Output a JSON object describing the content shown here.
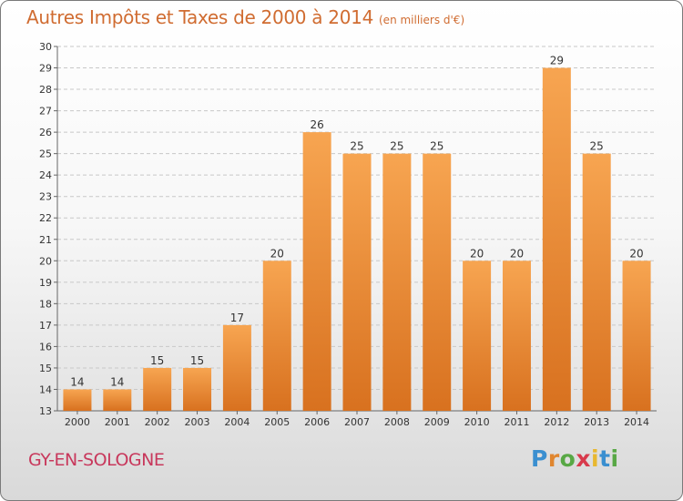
{
  "title": "Autres Impôts et Taxes de 2000 à 2014",
  "unit": "(en milliers d'€)",
  "commune": "GY-EN-SOLOGNE",
  "logo": {
    "text": "Proxiti",
    "letters": [
      {
        "ch": "P",
        "color": "#3a8fd0"
      },
      {
        "ch": "r",
        "color": "#e0862f"
      },
      {
        "ch": "o",
        "color": "#58a845"
      },
      {
        "ch": "x",
        "color": "#d83a4c"
      },
      {
        "ch": "i",
        "color": "#e8b830"
      },
      {
        "ch": "t",
        "color": "#3a8fd0"
      },
      {
        "ch": "i",
        "color": "#58a845"
      }
    ]
  },
  "colors": {
    "title": "#d06c31",
    "bar_top": "#f7a551",
    "bar_bottom": "#d8711f",
    "grid": "#c8c8c8",
    "axis_text": "#333333"
  },
  "chart_data": {
    "type": "bar",
    "categories": [
      "2000",
      "2001",
      "2002",
      "2003",
      "2004",
      "2005",
      "2006",
      "2007",
      "2008",
      "2009",
      "2010",
      "2011",
      "2012",
      "2013",
      "2014"
    ],
    "values": [
      14,
      14,
      15,
      15,
      17,
      20,
      26,
      25,
      25,
      25,
      20,
      20,
      29,
      25,
      20
    ],
    "ylim": [
      13,
      30
    ],
    "yticks": [
      13,
      14,
      15,
      16,
      17,
      18,
      19,
      20,
      21,
      22,
      23,
      24,
      25,
      26,
      27,
      28,
      29,
      30
    ],
    "data_labels": true,
    "grid": "horizontal dashed"
  }
}
